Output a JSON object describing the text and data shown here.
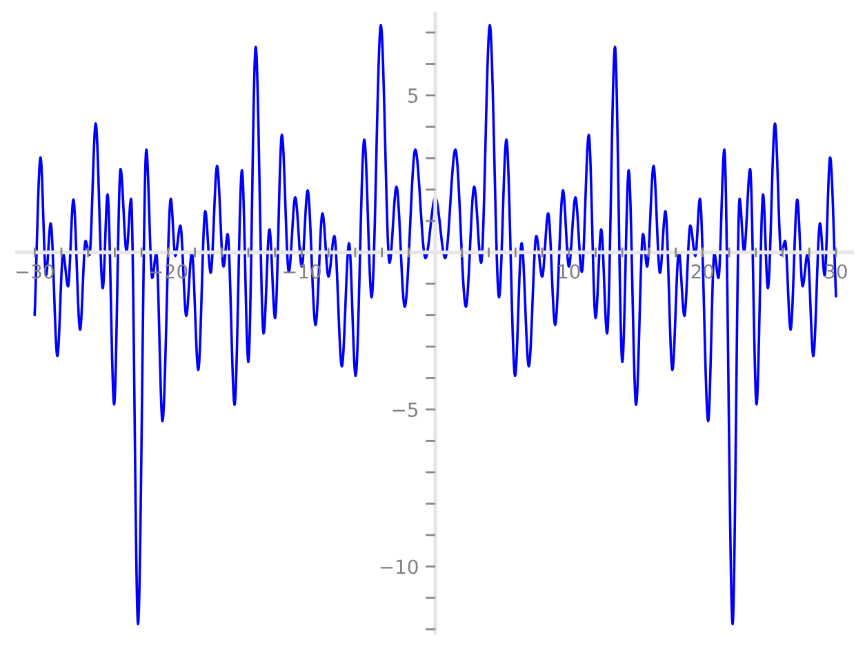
{
  "chart_data": {
    "type": "line",
    "x": [
      -30,
      -29.56,
      -29.15,
      -28.8,
      -28.3,
      -27.87,
      -27.5,
      -27.1,
      -26.6,
      -26.19,
      -25.9,
      -25.43,
      -24.9,
      -24.54,
      -24.05,
      -23.57,
      -23.12,
      -22.78,
      -22.26,
      -21.64,
      -21.2,
      -20.89,
      -20.43,
      -19.81,
      -19.47,
      -19.09,
      -18.65,
      -18.23,
      -17.75,
      -17.23,
      -16.82,
      -16.34,
      -15.86,
      -15.55,
      -15.03,
      -14.48,
      -14.0,
      -13.45,
      -12.86,
      -12.42,
      -12.0,
      -11.49,
      -10.97,
      -10.49,
      -10.0,
      -9.56,
      -8.97,
      -8.45,
      -8.0,
      -7.56,
      -7.0,
      -6.46,
      -5.97,
      -5.32,
      -4.77,
      -4.08,
      -3.43,
      -2.91,
      -2.29,
      -1.5,
      -0.74,
      0,
      0.74,
      1.5,
      2.29,
      2.91,
      3.43,
      4.08,
      4.77,
      5.32,
      5.97,
      6.46,
      7.0,
      7.56,
      8.0,
      8.45,
      8.97,
      9.56,
      10.0,
      10.49,
      10.97,
      11.49,
      12.0,
      12.42,
      12.86,
      13.45,
      14.0,
      14.48,
      15.03,
      15.55,
      15.86,
      16.34,
      16.82,
      17.23,
      17.75,
      18.23,
      18.65,
      19.09,
      19.47,
      19.81,
      20.43,
      20.89,
      21.2,
      21.64,
      22.26,
      22.78,
      23.12,
      23.57,
      24.05,
      24.54,
      24.9,
      25.43,
      25.9,
      26.19,
      26.6,
      27.1,
      27.5,
      27.87,
      28.3,
      28.8,
      29.15,
      29.56,
      30
    ],
    "series": [
      {
        "color": "#0000ff",
        "values": [
          -2.0,
          3.02,
          -0.73,
          0.92,
          -3.3,
          -0.04,
          -1.08,
          1.68,
          -2.46,
          0.36,
          -0.08,
          4.1,
          -1.14,
          1.84,
          -4.84,
          2.65,
          0.04,
          1.7,
          -11.83,
          3.27,
          -0.81,
          -0.04,
          -5.37,
          1.7,
          -0.11,
          0.85,
          -2.02,
          0,
          -3.74,
          1.31,
          -0.65,
          2.75,
          -0.45,
          0.58,
          -4.85,
          2.61,
          -3.49,
          6.54,
          -2.58,
          0.73,
          -2.09,
          3.74,
          -0.62,
          1.75,
          -0.45,
          1.97,
          -2.31,
          1.24,
          -0.77,
          0.52,
          -3.63,
          0.29,
          -3.93,
          3.59,
          -1.43,
          7.23,
          -0.33,
          2.09,
          -1.73,
          3.27,
          -0.18,
          1.75,
          -0.18,
          3.27,
          -1.73,
          2.09,
          -0.33,
          7.23,
          -1.43,
          3.59,
          -3.93,
          0.29,
          -3.63,
          0.52,
          -0.77,
          1.24,
          -2.31,
          1.97,
          -0.45,
          1.75,
          -0.62,
          3.74,
          -2.09,
          0.73,
          -2.58,
          6.54,
          -3.49,
          2.61,
          -4.85,
          0.58,
          -0.45,
          2.75,
          -0.65,
          1.31,
          -3.74,
          0,
          -2.02,
          0.85,
          -0.11,
          1.7,
          -5.37,
          -0.04,
          -0.81,
          3.27,
          -11.83,
          1.7,
          0.04,
          2.65,
          -4.84,
          1.84,
          -1.14,
          4.1,
          -0.08,
          0.36,
          -2.46,
          1.68,
          -1.08,
          -0.04,
          -3.3,
          0.92,
          -0.73,
          3.02,
          -1.4
        ]
      }
    ],
    "xlim": [
      -31.3,
      31.2
    ],
    "ylim": [
      -12.1,
      7.6
    ],
    "xticks": [
      -30,
      {
        "value": -28,
        "label": null
      },
      {
        "value": -26,
        "label": null
      },
      {
        "value": -24,
        "label": null
      },
      {
        "value": -22,
        "label": null
      },
      -20,
      {
        "value": -18,
        "label": null
      },
      {
        "value": -16,
        "label": null
      },
      {
        "value": -14,
        "label": null
      },
      {
        "value": -12,
        "label": null
      },
      -10,
      {
        "value": -8,
        "label": null
      },
      {
        "value": -6,
        "label": null
      },
      {
        "value": -4,
        "label": null
      },
      {
        "value": -2,
        "label": null
      },
      {
        "value": 2,
        "label": null
      },
      {
        "value": 4,
        "label": null
      },
      {
        "value": 6,
        "label": null
      },
      {
        "value": 8,
        "label": null
      },
      10,
      {
        "value": 12,
        "label": null
      },
      {
        "value": 14,
        "label": null
      },
      {
        "value": 16,
        "label": null
      },
      {
        "value": 18,
        "label": null
      },
      20,
      {
        "value": 22,
        "label": null
      },
      {
        "value": 24,
        "label": null
      },
      {
        "value": 26,
        "label": null
      },
      {
        "value": 28,
        "label": null
      },
      30
    ],
    "yticks": [
      {
        "value": -12,
        "label": null
      },
      {
        "value": -11,
        "label": null
      },
      -10,
      {
        "value": -9,
        "label": null
      },
      {
        "value": -8,
        "label": null
      },
      {
        "value": -7,
        "label": null
      },
      {
        "value": -6,
        "label": null
      },
      -5,
      {
        "value": -4,
        "label": null
      },
      {
        "value": -3,
        "label": null
      },
      {
        "value": -2,
        "label": null
      },
      {
        "value": -1,
        "label": null
      },
      {
        "value": 1,
        "label": null
      },
      {
        "value": 2,
        "label": null
      },
      {
        "value": 3,
        "label": null
      },
      {
        "value": 4,
        "label": null
      },
      5,
      {
        "value": 6,
        "label": null
      },
      {
        "value": 7,
        "label": null
      }
    ],
    "grid": false,
    "legend": false,
    "marker": "none",
    "line_style": "solid"
  }
}
